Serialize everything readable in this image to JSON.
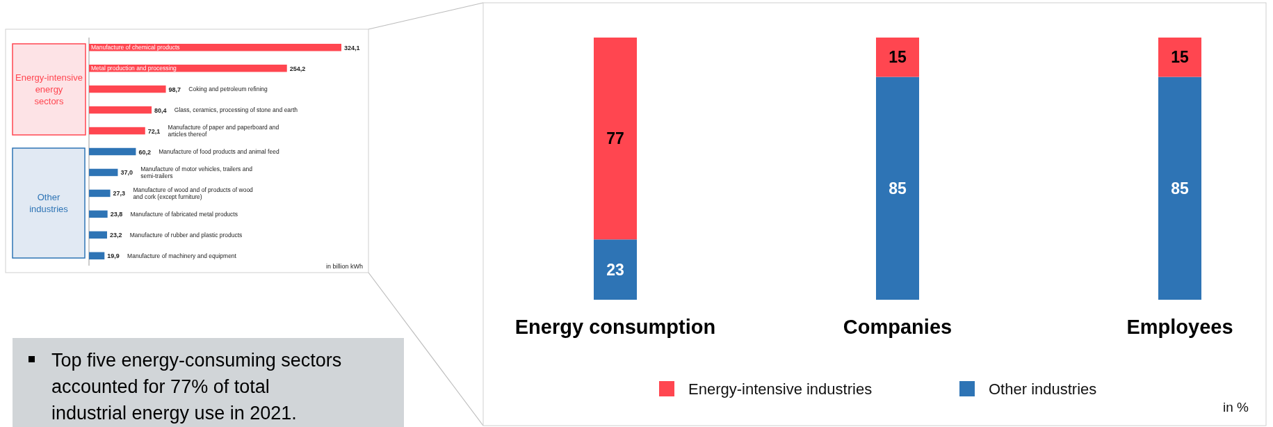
{
  "chart_data": [
    {
      "type": "bar",
      "orientation": "horizontal",
      "data_labels": false,
      "categories": [
        "Manufacture of chemical products",
        "Metal production and processing",
        "Coking and petroleum refining",
        "Glass, ceramics, processing of stone and earth",
        "Manufacture of paper and paperboard and articles thereof",
        "Manufacture of food products and animal feed",
        "Manufacture of motor vehicles, trailers and semi-trailers",
        "Manufacture of wood and of products of wood and cork (except furniture)",
        "Manufacture of fabricated metal products",
        "Manufacture of rubber and plastic products",
        "Manufacture of machinery and equipment"
      ],
      "values": [
        324.1,
        254.2,
        98.7,
        80.4,
        72.1,
        60.2,
        37.0,
        27.3,
        23.8,
        23.2,
        19.9
      ],
      "value_labels": [
        "324,1",
        "254,2",
        "98,7",
        "80,4",
        "72,1",
        "60,2",
        "37,0",
        "27,3",
        "23,8",
        "23,2",
        "19,9"
      ],
      "colors": [
        "#ff4650",
        "#ff4650",
        "#ff4650",
        "#ff4650",
        "#ff4650",
        "#2e74b5",
        "#2e74b5",
        "#2e74b5",
        "#2e74b5",
        "#2e74b5",
        "#2e74b5"
      ],
      "annotations": [
        "Energy-intensive energy sectors",
        "Other industries",
        "in billion kWh"
      ]
    },
    {
      "type": "bar",
      "stacked": true,
      "data_labels": true,
      "legend": "bottom",
      "categories": [
        "Energy consumption",
        "Companies",
        "Employees"
      ],
      "series": [
        {
          "name": "Other industries",
          "color": "#2e74b5",
          "values": [
            23,
            85,
            85
          ]
        },
        {
          "name": "Energy-intensive industries",
          "color": "#ff4650",
          "values": [
            77,
            15,
            15
          ]
        }
      ],
      "annotations": [
        "in %"
      ]
    },
    {
      "type": "other",
      "annotations": [
        "Top five energy-consuming sectors accounted for 77% of total industrial energy use in 2021."
      ]
    }
  ]
}
